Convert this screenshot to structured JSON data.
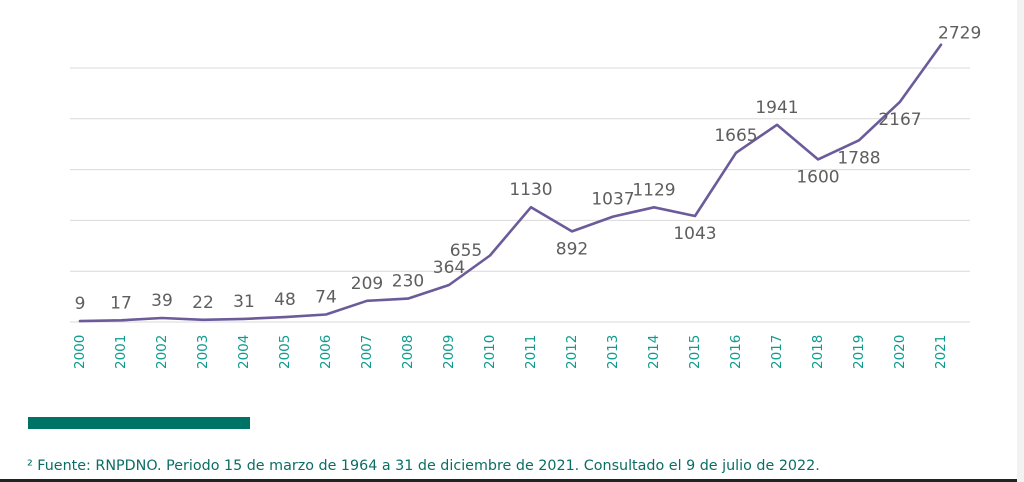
{
  "chart_data": {
    "type": "line",
    "title": "",
    "xlabel": "",
    "ylabel": "",
    "categories": [
      "2000",
      "2001",
      "2002",
      "2003",
      "2004",
      "2005",
      "2006",
      "2007",
      "2008",
      "2009",
      "2010",
      "2011",
      "2012",
      "2013",
      "2014",
      "2015",
      "2016",
      "2017",
      "2018",
      "2019",
      "2020",
      "2021"
    ],
    "series": [
      {
        "values": [
          9,
          17,
          39,
          22,
          31,
          48,
          74,
          209,
          230,
          364,
          655,
          1130,
          892,
          1037,
          1129,
          1043,
          1665,
          1941,
          1600,
          1788,
          2167,
          2729
        ]
      }
    ],
    "data_labels": [
      "9",
      "17",
      "39",
      "22",
      "31",
      "48",
      "74",
      "209",
      "230",
      "364",
      "",
      "1130",
      "892",
      "1037",
      "1129",
      "1043",
      "1665",
      "1941",
      "1600",
      "1788",
      "2167",
      "2729"
    ],
    "extra_labels": [
      "655"
    ],
    "ylim": [
      0,
      2500
    ],
    "grid": true,
    "legend": "none",
    "colors": {
      "line": "#6b5b9a",
      "tick_labels": "#0f9b8e",
      "data_labels": "#5e5e5e",
      "grid": "#d9d9d9",
      "accent_bar": "#007367",
      "footnote": "#0a6e64"
    }
  },
  "footnote": "² Fuente: RNPDNO. Periodo 15 de marzo de 1964 a 31 de diciembre de 2021. Consultado el 9 de julio de 2022."
}
